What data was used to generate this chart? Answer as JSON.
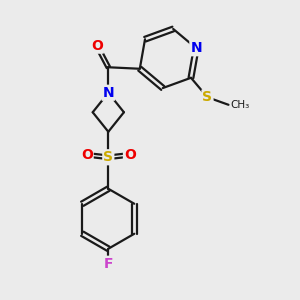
{
  "background_color": "#ebebeb",
  "bond_color": "#1a1a1a",
  "bond_width": 1.6,
  "atom_colors": {
    "N": "#0000ee",
    "O": "#ee0000",
    "S": "#ccaa00",
    "F": "#cc44cc",
    "C": "#1a1a1a"
  },
  "figsize": [
    3.0,
    3.0
  ],
  "dpi": 100
}
